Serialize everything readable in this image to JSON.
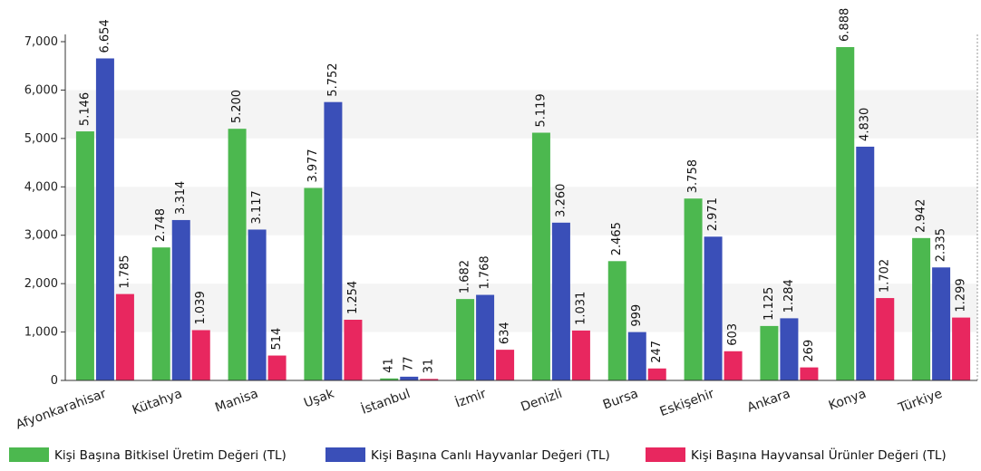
{
  "chart_data": {
    "type": "bar",
    "categories": [
      "Afyonkarahisar",
      "Kütahya",
      "Manisa",
      "Uşak",
      "İstanbul",
      "İzmir",
      "Denizli",
      "Bursa",
      "Eskişehir",
      "Ankara",
      "Konya",
      "Türkiye"
    ],
    "series": [
      {
        "name": "Kişi Başına Bitkisel Üretim Değeri (TL)",
        "color": "#4cb84f",
        "values": [
          5146,
          2748,
          5200,
          3977,
          41,
          1682,
          5119,
          2465,
          3758,
          1125,
          6888,
          2942
        ],
        "labels": [
          "5.146",
          "2.748",
          "5.200",
          "3.977",
          "41",
          "1.682",
          "5.119",
          "2.465",
          "3.758",
          "1.125",
          "6.888",
          "2.942"
        ]
      },
      {
        "name": "Kişi Başına Canlı Hayvanlar Değeri (TL)",
        "color": "#3a4fb8",
        "values": [
          6654,
          3314,
          3117,
          5752,
          77,
          1768,
          3260,
          999,
          2971,
          1284,
          4830,
          2335
        ],
        "labels": [
          "6.654",
          "3.314",
          "3.117",
          "5.752",
          "77",
          "1.768",
          "3.260",
          "999",
          "2.971",
          "1.284",
          "4.830",
          "2.335"
        ]
      },
      {
        "name": "Kişi Başına Hayvansal Ürünler Değeri (TL)",
        "color": "#e8275f",
        "values": [
          1785,
          1039,
          514,
          1254,
          31,
          634,
          1031,
          247,
          603,
          269,
          1702,
          1299
        ],
        "labels": [
          "1.785",
          "1.039",
          "514",
          "1.254",
          "31",
          "634",
          "1.031",
          "247",
          "603",
          "269",
          "1.702",
          "1.299"
        ]
      }
    ],
    "yticks": [
      0,
      1000,
      2000,
      3000,
      4000,
      5000,
      6000,
      7000
    ],
    "ytick_labels": [
      "0",
      "1,000",
      "2,000",
      "3,000",
      "4,000",
      "5,000",
      "6,000",
      "7,000"
    ],
    "ylim": [
      0,
      7000
    ],
    "title": "",
    "xlabel": "",
    "ylabel": "",
    "legend_position": "bottom",
    "grid": "alternating horizontal bands"
  }
}
